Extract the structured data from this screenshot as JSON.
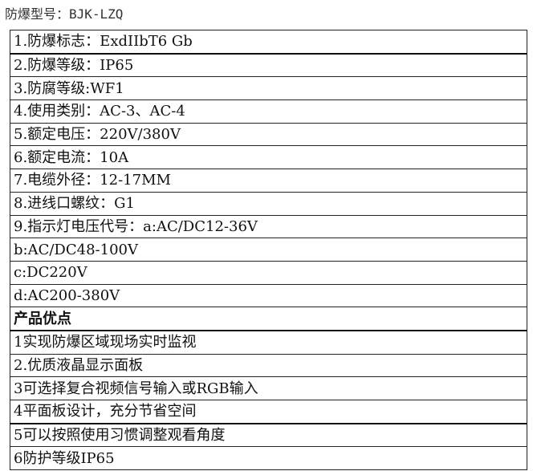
{
  "title": "防爆型号：BJK-LZQ",
  "rows": [
    {
      "text": "1.防爆标志：ExdIIbT6 Gb"
    },
    {
      "text": "2.防爆等级：IP65"
    },
    {
      "text": "3.防腐等级:WF1"
    },
    {
      "text": "4.使用类别：AC-3、AC-4"
    },
    {
      "text": "5.额定电压：220V/380V"
    },
    {
      "text": "6.额定电流：10A"
    },
    {
      "text": "7.电缆外径：12-17MM"
    },
    {
      "text": "8.进线口螺纹：G1"
    },
    {
      "text": "9.指示灯电压代号：a:AC/DC12-36V"
    },
    {
      "text": "b:AC/DC48-100V"
    },
    {
      "text": "c:DC220V"
    },
    {
      "text": "d:AC200-380V"
    },
    {
      "text": "产品优点"
    },
    {
      "text": "1实现防爆区域现场实时监视"
    },
    {
      "text": "2.优质液晶显示面板"
    },
    {
      "text": "3可选择复合视频信号输入或RGB输入"
    },
    {
      "text": "4平面板设计，充分节省空间"
    },
    {
      "text": "5可以按照使用习惯调整观看角度"
    },
    {
      "text": "6防护等级IP65"
    }
  ]
}
